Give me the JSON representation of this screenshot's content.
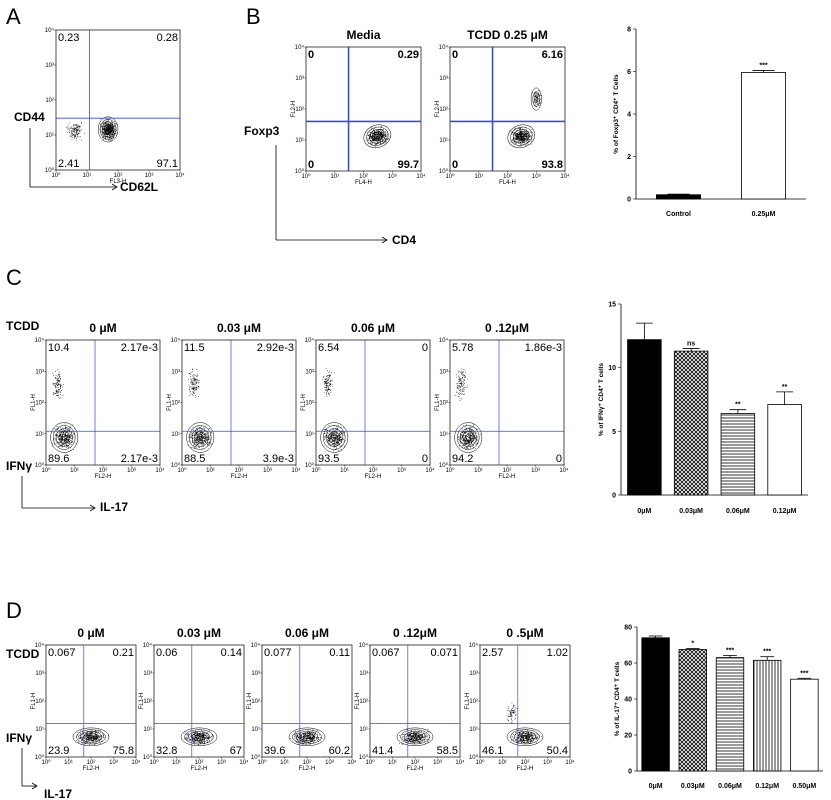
{
  "panels": {
    "A": {
      "letter": "A",
      "y_label": "CD44",
      "x_label": "CD62L",
      "x_channel": "FL3-H",
      "quadrants": {
        "ul": "0.23",
        "ur": "0.28",
        "ll": "2.41",
        "lr": "97.1"
      }
    },
    "B": {
      "letter": "B",
      "y_label": "Foxp3",
      "x_label": "CD4",
      "plots": [
        {
          "title": "Media",
          "y_channel": "FL2-H",
          "x_channel": "FL4-H",
          "quadrants": {
            "ul": "0",
            "ur": "0.29",
            "ll": "0",
            "lr": "99.7"
          }
        },
        {
          "title": "TCDD 0.25  μM",
          "y_channel": "FL2-H",
          "x_channel": "FL4-H",
          "quadrants": {
            "ul": "0",
            "ur": "6.16",
            "ll": "0",
            "lr": "93.8"
          }
        }
      ]
    },
    "C": {
      "letter": "C",
      "row_label": "TCDD",
      "y_label": "IFNγ",
      "x_label": "IL-17",
      "plots": [
        {
          "title": "0 μM",
          "y_channel": "FL1-H",
          "x_channel": "FL2-H",
          "quadrants": {
            "ul": "10.4",
            "ur": "2.17e-3",
            "ll": "89.6",
            "lr": "2.17e-3"
          }
        },
        {
          "title": "0.03 μM",
          "y_channel": "FL1-H",
          "x_channel": "FL2-H",
          "quadrants": {
            "ul": "11.5",
            "ur": "2.92e-3",
            "ll": "88.5",
            "lr": "3.9e-3"
          }
        },
        {
          "title": "0.06 μM",
          "y_channel": "FL1-H",
          "x_channel": "FL2-H",
          "quadrants": {
            "ul": "6.54",
            "ur": "0",
            "ll": "93.5",
            "lr": "0"
          }
        },
        {
          "title": "0 .12μM",
          "y_channel": "FL1-H",
          "x_channel": "FL2-H",
          "quadrants": {
            "ul": "5.78",
            "ur": "1.86e-3",
            "ll": "94.2",
            "lr": "0"
          }
        }
      ]
    },
    "D": {
      "letter": "D",
      "row_label": "TCDD",
      "y_label": "IFNγ",
      "x_label": "IL-17",
      "plots": [
        {
          "title": "0 μM",
          "y_channel": "FL1-H",
          "x_channel": "FL2-H",
          "quadrants": {
            "ul": "0.067",
            "ur": "0.21",
            "ll": "23.9",
            "lr": "75.8"
          }
        },
        {
          "title": "0.03 μM",
          "y_channel": "FL1-H",
          "x_channel": "FL2-H",
          "quadrants": {
            "ul": "0.06",
            "ur": "0.14",
            "ll": "32.8",
            "lr": "67"
          }
        },
        {
          "title": "0.06 μM",
          "y_channel": "FL1-H",
          "x_channel": "FL2-H",
          "quadrants": {
            "ul": "0.077",
            "ur": "0.11",
            "ll": "39.6",
            "lr": "60.2"
          }
        },
        {
          "title": "0 .12μM",
          "y_channel": "FL1-H",
          "x_channel": "FL2-H",
          "quadrants": {
            "ul": "0.067",
            "ur": "0.071",
            "ll": "41.4",
            "lr": "58.5"
          }
        },
        {
          "title": "0 .5μM",
          "y_channel": "FL1-H",
          "x_channel": "FL2-H",
          "quadrants": {
            "ul": "2.57",
            "ur": "1.02",
            "ll": "46.1",
            "lr": "50.4"
          }
        }
      ]
    }
  },
  "flow_ticks": [
    "10⁰",
    "10¹",
    "10²",
    "10³",
    "10⁴"
  ],
  "chart_data": [
    {
      "type": "bar",
      "panel": "B",
      "ylabel": "% of Foxp3⁺ CD4⁺ T Cells",
      "categories": [
        "Control",
        "0.25μM"
      ],
      "values": [
        0.2,
        5.95
      ],
      "errors": [
        0.03,
        0.1
      ],
      "significance": [
        "",
        "***"
      ],
      "fills": [
        "solid-black",
        "white"
      ],
      "ylim": [
        0,
        8
      ],
      "yticks": [
        "0",
        "2",
        "4",
        "6",
        "8"
      ]
    },
    {
      "type": "bar",
      "panel": "C",
      "ylabel": "% of IFNγ⁺ CD4⁺ T cells",
      "categories": [
        "0μM",
        "0.03μM",
        "0.06μM",
        "0.12μM"
      ],
      "values": [
        12.2,
        11.3,
        6.4,
        7.1
      ],
      "errors": [
        1.3,
        0.2,
        0.3,
        1.0
      ],
      "significance": [
        "",
        "ns",
        "**",
        "**"
      ],
      "fills": [
        "solid-black",
        "crosshatch",
        "horizontal-lines",
        "white"
      ],
      "ylim": [
        0,
        15
      ],
      "yticks": [
        "0",
        "5",
        "10",
        "15"
      ]
    },
    {
      "type": "bar",
      "panel": "D",
      "ylabel": "% of IL-17⁺ CD4⁺ T cells",
      "categories": [
        "0μM",
        "0.03μM",
        "0.06μM",
        "0.12μM",
        "0.50μM"
      ],
      "values": [
        74,
        67.5,
        63,
        61.5,
        51
      ],
      "errors": [
        1,
        0.5,
        1.2,
        2,
        0.5
      ],
      "significance": [
        "",
        "*",
        "***",
        "***",
        "***"
      ],
      "fills": [
        "solid-black",
        "crosshatch",
        "horizontal-lines",
        "vertical-lines",
        "white"
      ],
      "ylim": [
        0,
        80
      ],
      "yticks": [
        "0",
        "20",
        "40",
        "60",
        "80"
      ]
    }
  ],
  "colors": {
    "gate": "#3b4bd6",
    "ink": "#000000"
  }
}
